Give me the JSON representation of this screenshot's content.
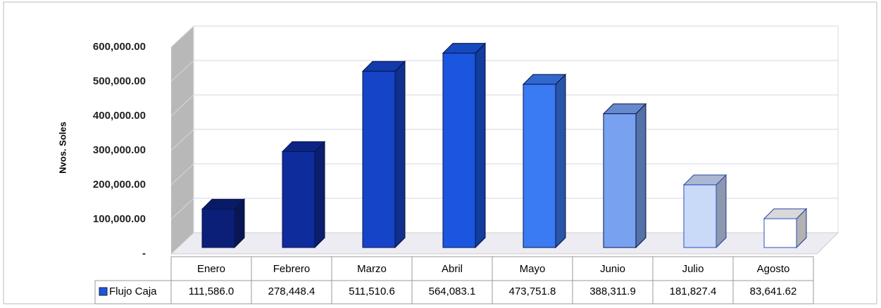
{
  "chart_data": {
    "type": "bar3d",
    "y_label": "Nvos. Soles",
    "categories": [
      "Enero",
      "Febrero",
      "Marzo",
      "Abril",
      "Mayo",
      "Junio",
      "Julio",
      "Agosto"
    ],
    "series": [
      {
        "name": "Flujo Caja",
        "color": "#1a56e0",
        "values": [
          111586.0,
          278448.4,
          511510.6,
          564083.1,
          473751.8,
          388311.9,
          181827.4,
          83641.62
        ],
        "value_labels": [
          "111,586.0",
          "278,448.4",
          "511,510.6",
          "564,083.1",
          "473,751.8",
          "388,311.9",
          "181,827.4",
          "83,641.62"
        ],
        "colors": [
          "#0b1f78",
          "#0f2c9c",
          "#1544c8",
          "#1a56e0",
          "#3a7af2",
          "#78a2f0",
          "#c9d9f8",
          "#ffffff"
        ]
      }
    ],
    "ylim": [
      0,
      600000
    ],
    "yticks": [
      {
        "value": 0,
        "label": "-"
      },
      {
        "value": 100000,
        "label": "100,000.00"
      },
      {
        "value": 200000,
        "label": "200,000.00"
      },
      {
        "value": 300000,
        "label": "300,000.00"
      },
      {
        "value": 400000,
        "label": "400,000.00"
      },
      {
        "value": 500000,
        "label": "500,000.00"
      },
      {
        "value": 600000,
        "label": "600,000.00"
      }
    ],
    "grid": true
  }
}
